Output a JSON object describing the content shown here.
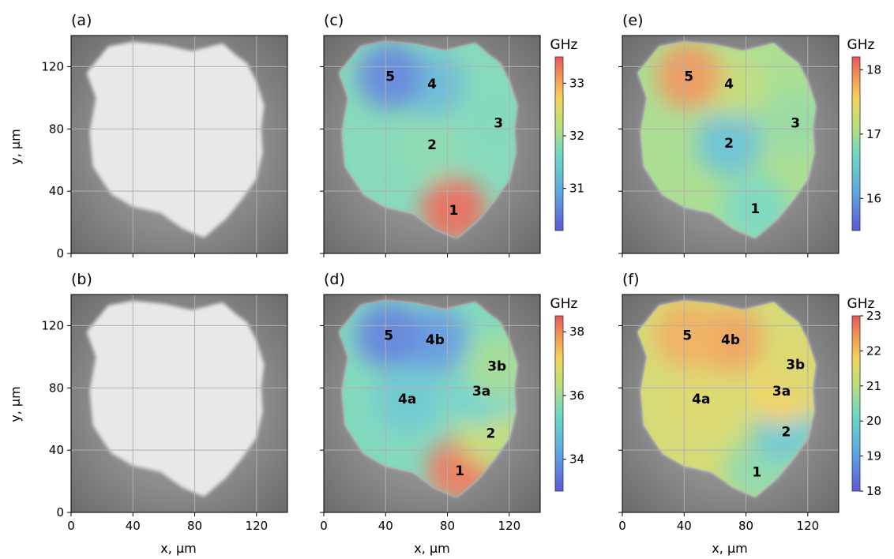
{
  "figure": {
    "x_label": "x, µm",
    "y_label": "y, µm",
    "colorbar_unit": "GHz",
    "x_ticks": [
      0,
      40,
      80,
      120
    ],
    "y_ticks": [
      0,
      40,
      80,
      120
    ]
  },
  "chart_data": [
    {
      "type": "heatmap",
      "panel": "(a)",
      "xlabel": "",
      "ylabel": "y, µm",
      "xlim": [
        0,
        140
      ],
      "ylim": [
        0,
        140
      ],
      "grid": true,
      "content": "grayscale optical image",
      "regions": []
    },
    {
      "type": "heatmap",
      "panel": "(b)",
      "xlabel": "x, µm",
      "ylabel": "y, µm",
      "xlim": [
        0,
        140
      ],
      "ylim": [
        0,
        140
      ],
      "grid": true,
      "content": "grayscale optical image",
      "regions": []
    },
    {
      "type": "heatmap",
      "panel": "(c)",
      "xlabel": "",
      "ylabel": "",
      "xlim": [
        0,
        140
      ],
      "ylim": [
        0,
        140
      ],
      "grid": true,
      "colormap": "jet",
      "colorbar": {
        "label": "GHz",
        "range": [
          30.2,
          33.5
        ],
        "ticks": [
          31,
          32,
          33
        ]
      },
      "regions": [
        {
          "label": "1",
          "x": 84,
          "y": 28,
          "value": 33.4
        },
        {
          "label": "2",
          "x": 70,
          "y": 70,
          "value": 31.8
        },
        {
          "label": "3",
          "x": 113,
          "y": 84,
          "value": 31.7
        },
        {
          "label": "4",
          "x": 70,
          "y": 109,
          "value": 31.2
        },
        {
          "label": "5",
          "x": 43,
          "y": 114,
          "value": 30.6
        }
      ]
    },
    {
      "type": "heatmap",
      "panel": "(d)",
      "xlabel": "x, µm",
      "ylabel": "",
      "xlim": [
        0,
        140
      ],
      "ylim": [
        0,
        140
      ],
      "grid": true,
      "colormap": "jet",
      "colorbar": {
        "label": "GHz",
        "range": [
          33.0,
          38.5
        ],
        "ticks": [
          34,
          36,
          38
        ]
      },
      "regions": [
        {
          "label": "1",
          "x": 88,
          "y": 27,
          "value": 38.2
        },
        {
          "label": "2",
          "x": 108,
          "y": 51,
          "value": 36.5
        },
        {
          "label": "3a",
          "x": 102,
          "y": 78,
          "value": 35.2
        },
        {
          "label": "3b",
          "x": 112,
          "y": 94,
          "value": 36.0
        },
        {
          "label": "4a",
          "x": 54,
          "y": 73,
          "value": 35.0
        },
        {
          "label": "4b",
          "x": 72,
          "y": 111,
          "value": 34.0
        },
        {
          "label": "5",
          "x": 42,
          "y": 114,
          "value": 33.6
        }
      ]
    },
    {
      "type": "heatmap",
      "panel": "(e)",
      "xlabel": "",
      "ylabel": "",
      "xlim": [
        0,
        140
      ],
      "ylim": [
        0,
        140
      ],
      "grid": true,
      "colormap": "jet",
      "colorbar": {
        "label": "GHz",
        "range": [
          15.5,
          18.2
        ],
        "ticks": [
          16,
          17,
          18
        ]
      },
      "regions": [
        {
          "label": "1",
          "x": 86,
          "y": 29,
          "value": 16.7
        },
        {
          "label": "2",
          "x": 69,
          "y": 71,
          "value": 16.4
        },
        {
          "label": "3",
          "x": 112,
          "y": 84,
          "value": 16.9
        },
        {
          "label": "4",
          "x": 69,
          "y": 109,
          "value": 17.2
        },
        {
          "label": "5",
          "x": 43,
          "y": 114,
          "value": 17.9
        }
      ]
    },
    {
      "type": "heatmap",
      "panel": "(f)",
      "xlabel": "x, µm",
      "ylabel": "",
      "xlim": [
        0,
        140
      ],
      "ylim": [
        0,
        140
      ],
      "grid": true,
      "colormap": "jet",
      "colorbar": {
        "label": "GHz",
        "range": [
          18,
          23
        ],
        "ticks": [
          18,
          19,
          20,
          21,
          22,
          23
        ]
      },
      "regions": [
        {
          "label": "1",
          "x": 87,
          "y": 26,
          "value": 20.5
        },
        {
          "label": "2",
          "x": 106,
          "y": 52,
          "value": 19.8
        },
        {
          "label": "3a",
          "x": 103,
          "y": 78,
          "value": 21.8
        },
        {
          "label": "3b",
          "x": 112,
          "y": 95,
          "value": 21.5
        },
        {
          "label": "4a",
          "x": 51,
          "y": 73,
          "value": 21.5
        },
        {
          "label": "4b",
          "x": 70,
          "y": 111,
          "value": 22.3
        },
        {
          "label": "5",
          "x": 42,
          "y": 114,
          "value": 22.2
        }
      ]
    }
  ]
}
